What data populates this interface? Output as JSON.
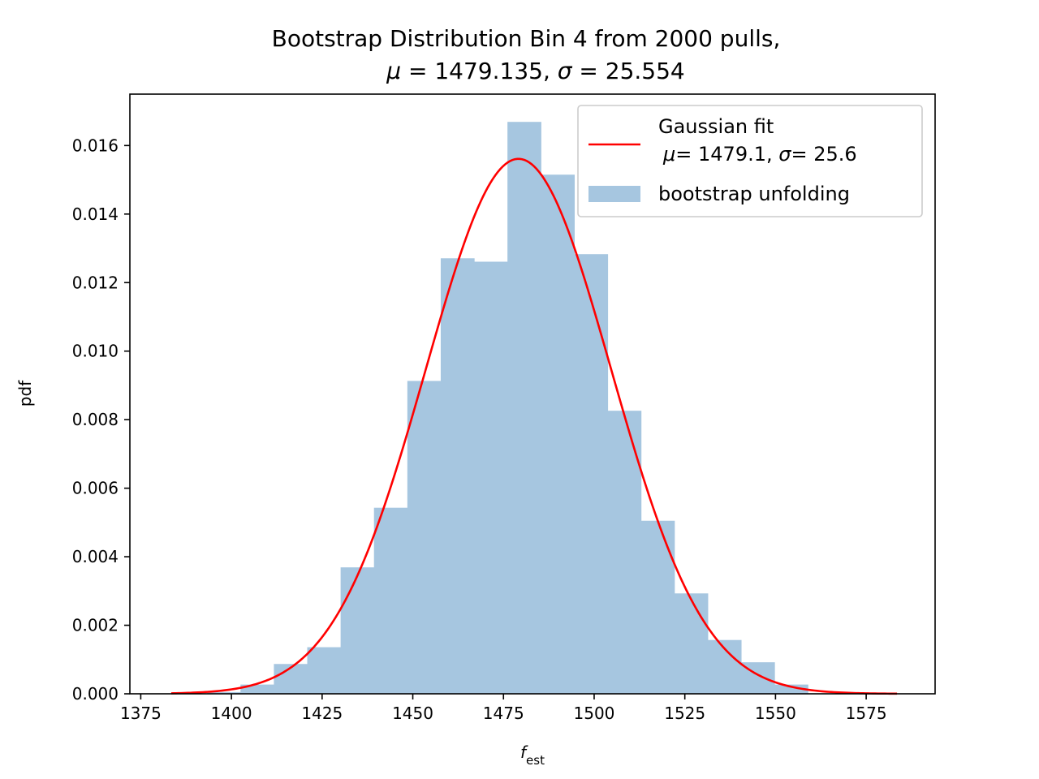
{
  "chart_data": {
    "type": "bar",
    "title_line1": "Bootstrap Distribution  Bin 4 from 2000 pulls,",
    "title_mu_sym": "μ",
    "title_mu_val": " = 1479.135, ",
    "title_sigma_sym": "σ",
    "title_sigma_val": " = 25.554",
    "xlabel_main": "f",
    "xlabel_sub": "est",
    "ylabel": "pdf",
    "xlim": [
      1372,
      1594
    ],
    "ylim": [
      0,
      0.0175
    ],
    "xticks": [
      1375,
      1400,
      1425,
      1450,
      1475,
      1500,
      1525,
      1550,
      1575
    ],
    "yticks": [
      0.0,
      0.002,
      0.004,
      0.006,
      0.008,
      0.01,
      0.012,
      0.014,
      0.016
    ],
    "bin_edges": [
      1393.3,
      1402.5,
      1411.7,
      1420.9,
      1430.1,
      1439.3,
      1448.5,
      1457.7,
      1466.9,
      1476.1,
      1485.3,
      1494.5,
      1503.7,
      1512.9,
      1522.1,
      1531.3,
      1540.5,
      1549.7,
      1558.9
    ],
    "bin_values": [
      5e-05,
      0.00027,
      0.00087,
      0.00136,
      0.00369,
      0.00543,
      0.00913,
      0.01271,
      0.01261,
      0.01669,
      0.01515,
      0.01283,
      0.00826,
      0.00505,
      0.00293,
      0.00157,
      0.00092,
      0.00027
    ],
    "histogram_color": "#a6c6e0",
    "fit": {
      "mu": 1479.135,
      "sigma": 25.554,
      "x_range": [
        1383.4,
        1583.5
      ],
      "color": "#ff0000"
    },
    "legend": {
      "fit_label_line1": "Gaussian fit",
      "fit_mu_sym": "μ",
      "fit_mu_val": "= 1479.1, ",
      "fit_sigma_sym": "σ",
      "fit_sigma_val": "= 25.6",
      "hist_label": "bootstrap unfolding",
      "placement": "top-right"
    }
  }
}
